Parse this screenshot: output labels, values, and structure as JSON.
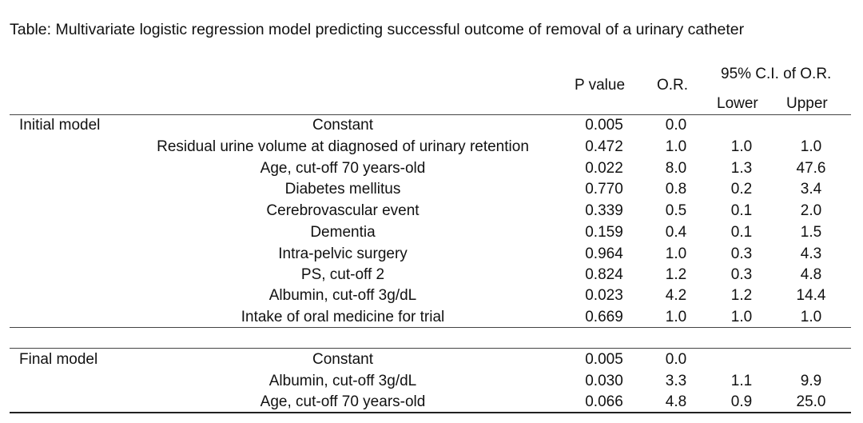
{
  "caption": "Table: Multivariate logistic regression model predicting successful outcome of removal of a urinary catheter",
  "header": {
    "p_value": "P value",
    "or": "O.R.",
    "ci_group": "95% C.I. of O.R.",
    "lower": "Lower",
    "upper": "Upper"
  },
  "initial": {
    "label": "Initial model",
    "rows": [
      {
        "variable": "Constant",
        "p": "0.005",
        "or": "0.0",
        "lower": "",
        "upper": ""
      },
      {
        "variable": "Residual urine volume at diagnosed of urinary retention",
        "p": "0.472",
        "or": "1.0",
        "lower": "1.0",
        "upper": "1.0"
      },
      {
        "variable": "Age, cut-off 70 years-old",
        "p": "0.022",
        "or": "8.0",
        "lower": "1.3",
        "upper": "47.6"
      },
      {
        "variable": "Diabetes mellitus",
        "p": "0.770",
        "or": "0.8",
        "lower": "0.2",
        "upper": "3.4"
      },
      {
        "variable": "Cerebrovascular event",
        "p": "0.339",
        "or": "0.5",
        "lower": "0.1",
        "upper": "2.0"
      },
      {
        "variable": "Dementia",
        "p": "0.159",
        "or": "0.4",
        "lower": "0.1",
        "upper": "1.5"
      },
      {
        "variable": "Intra-pelvic surgery",
        "p": "0.964",
        "or": "1.0",
        "lower": "0.3",
        "upper": "4.3"
      },
      {
        "variable": "PS, cut-off 2",
        "p": "0.824",
        "or": "1.2",
        "lower": "0.3",
        "upper": "4.8"
      },
      {
        "variable": "Albumin, cut-off 3g/dL",
        "p": "0.023",
        "or": "4.2",
        "lower": "1.2",
        "upper": "14.4"
      },
      {
        "variable": "Intake of oral medicine for trial",
        "p": "0.669",
        "or": "1.0",
        "lower": "1.0",
        "upper": "1.0"
      }
    ]
  },
  "final": {
    "label": "Final model",
    "rows": [
      {
        "variable": "Constant",
        "p": "0.005",
        "or": "0.0",
        "lower": "",
        "upper": ""
      },
      {
        "variable": "Albumin, cut-off 3g/dL",
        "p": "0.030",
        "or": "3.3",
        "lower": "1.1",
        "upper": "9.9"
      },
      {
        "variable": "Age, cut-off 70 years-old",
        "p": "0.066",
        "or": "4.8",
        "lower": "0.9",
        "upper": "25.0"
      }
    ]
  }
}
